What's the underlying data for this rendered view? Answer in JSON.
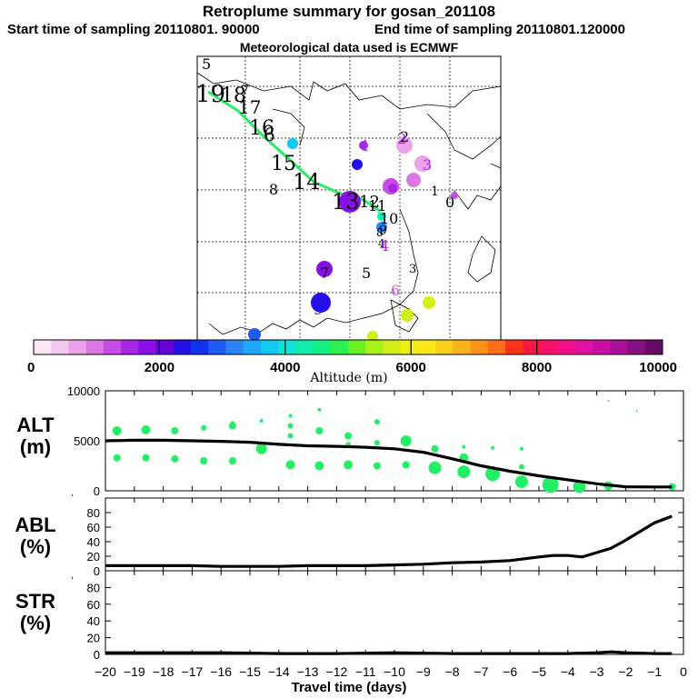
{
  "header": {
    "title": "Retroplume summary for gosan_201108",
    "start": "Start time of sampling 20110801. 90000",
    "end": "End time of sampling 20110801.120000",
    "met": "Meteorological data used is ECMWF"
  },
  "colorbar": {
    "label": "Altitude (m)",
    "ticks": [
      "0",
      "2000",
      "4000",
      "6000",
      "8000",
      "10000"
    ],
    "colors": [
      "#fbe6f7",
      "#f5c8ef",
      "#eaa2e8",
      "#dc78e6",
      "#c84be6",
      "#a826e6",
      "#8810e6",
      "#6405d6",
      "#2410e6",
      "#1232ee",
      "#1e5cf5",
      "#2a84f8",
      "#1ea6fb",
      "#10c8f2",
      "#10e2d8",
      "#10ecb0",
      "#14f080",
      "#2cf050",
      "#6af020",
      "#a8f01a",
      "#d2f018",
      "#f0f016",
      "#fae818",
      "#fcd01a",
      "#fcb41a",
      "#fc9218",
      "#fc6e18",
      "#fb3418",
      "#fa1640",
      "#fa1068",
      "#f4108c",
      "#e010a0",
      "#c810a4",
      "#a81098",
      "#861080",
      "#660a66"
    ]
  },
  "map": {
    "trajectory_labels": [
      "19",
      "18",
      "17",
      "16",
      "15",
      "14",
      "13",
      "12",
      "11",
      "10",
      "9",
      "8",
      "7",
      "6",
      "5",
      "4",
      "3",
      "2",
      "1",
      "0"
    ],
    "cluster_labels": [
      "1",
      "2",
      "3",
      "4",
      "5",
      "6",
      "7",
      "8",
      "9"
    ]
  },
  "chart_data": [
    {
      "type": "line",
      "panel": "ALT",
      "ylabel": "ALT\n(m)",
      "ylim": [
        0,
        10000
      ],
      "yticks": [
        "0",
        "5000",
        "10000"
      ],
      "x": [
        -20,
        -19,
        -18,
        -17,
        -16,
        -15,
        -14,
        -13,
        -12,
        -11,
        -10,
        -9,
        -8,
        -7,
        -6,
        -5,
        -4,
        -3,
        -2,
        -1,
        -0.4
      ],
      "values": [
        5000,
        5050,
        5050,
        5000,
        4950,
        4850,
        4650,
        4500,
        4450,
        4350,
        4200,
        3850,
        3200,
        2500,
        1950,
        1500,
        1100,
        700,
        400,
        380,
        380
      ],
      "scatter": [
        {
          "x": -19.6,
          "y": 6000,
          "r": 5
        },
        {
          "x": -19.6,
          "y": 3300,
          "r": 4
        },
        {
          "x": -18.6,
          "y": 6100,
          "r": 5
        },
        {
          "x": -18.6,
          "y": 3300,
          "r": 4
        },
        {
          "x": -17.6,
          "y": 6000,
          "r": 4
        },
        {
          "x": -17.6,
          "y": 3200,
          "r": 4
        },
        {
          "x": -16.6,
          "y": 6300,
          "r": 3
        },
        {
          "x": -16.6,
          "y": 3000,
          "r": 4
        },
        {
          "x": -15.6,
          "y": 6500,
          "r": 4
        },
        {
          "x": -15.6,
          "y": 6800,
          "r": 2
        },
        {
          "x": -15.6,
          "y": 3000,
          "r": 4
        },
        {
          "x": -14.6,
          "y": 7000,
          "r": 2
        },
        {
          "x": -14.6,
          "y": 4200,
          "r": 6
        },
        {
          "x": -13.6,
          "y": 7500,
          "r": 2
        },
        {
          "x": -13.6,
          "y": 6500,
          "r": 3
        },
        {
          "x": -13.6,
          "y": 5500,
          "r": 3
        },
        {
          "x": -13.6,
          "y": 2600,
          "r": 5
        },
        {
          "x": -12.6,
          "y": 8100,
          "r": 2
        },
        {
          "x": -12.6,
          "y": 6000,
          "r": 4
        },
        {
          "x": -12.6,
          "y": 2500,
          "r": 5
        },
        {
          "x": -11.6,
          "y": 5500,
          "r": 4
        },
        {
          "x": -11.6,
          "y": 4600,
          "r": 3
        },
        {
          "x": -11.6,
          "y": 2600,
          "r": 5
        },
        {
          "x": -10.6,
          "y": 6900,
          "r": 3
        },
        {
          "x": -10.6,
          "y": 4800,
          "r": 3
        },
        {
          "x": -10.6,
          "y": 2500,
          "r": 4
        },
        {
          "x": -9.6,
          "y": 5000,
          "r": 6
        },
        {
          "x": -9.6,
          "y": 2600,
          "r": 4
        },
        {
          "x": -8.6,
          "y": 4200,
          "r": 4
        },
        {
          "x": -8.6,
          "y": 2300,
          "r": 7
        },
        {
          "x": -7.6,
          "y": 4400,
          "r": 2
        },
        {
          "x": -7.6,
          "y": 3300,
          "r": 5
        },
        {
          "x": -7.6,
          "y": 1900,
          "r": 7
        },
        {
          "x": -6.6,
          "y": 4300,
          "r": 2
        },
        {
          "x": -6.6,
          "y": 1700,
          "r": 8
        },
        {
          "x": -5.6,
          "y": 4200,
          "r": 2
        },
        {
          "x": -5.6,
          "y": 2400,
          "r": 3
        },
        {
          "x": -5.6,
          "y": 900,
          "r": 7
        },
        {
          "x": -4.6,
          "y": 600,
          "r": 9
        },
        {
          "x": -3.6,
          "y": 400,
          "r": 7
        },
        {
          "x": -2.6,
          "y": 9000,
          "r": 1
        },
        {
          "x": -2.6,
          "y": 500,
          "r": 5
        },
        {
          "x": -1.6,
          "y": 8000,
          "r": 1
        },
        {
          "x": -0.4,
          "y": 400,
          "r": 4
        }
      ]
    },
    {
      "type": "line",
      "panel": "ABL",
      "ylabel": "ABL\n(%)",
      "ylim": [
        0,
        100
      ],
      "yticks": [
        "0",
        "20",
        "40",
        "60",
        "80"
      ],
      "x": [
        -20,
        -19,
        -18,
        -17,
        -16,
        -15,
        -14,
        -13,
        -12,
        -11,
        -10,
        -9,
        -8,
        -7,
        -6,
        -5,
        -4.5,
        -4,
        -3.5,
        -3,
        -2.5,
        -2,
        -1.5,
        -1,
        -0.4
      ],
      "values": [
        7,
        7,
        7,
        7,
        6,
        6,
        6,
        7,
        7,
        7,
        8,
        9,
        11,
        12,
        14,
        19,
        21,
        21,
        19,
        25,
        31,
        42,
        54,
        66,
        75
      ]
    },
    {
      "type": "line",
      "panel": "STR",
      "ylabel": "STR\n(%)",
      "ylim": [
        0,
        100
      ],
      "yticks": [
        "0",
        "20",
        "40",
        "60",
        "80"
      ],
      "x": [
        -20,
        -18,
        -16,
        -14,
        -12,
        -10,
        -8,
        -6,
        -4,
        -3,
        -2.5,
        -2,
        -1,
        -0.4
      ],
      "values": [
        2,
        2,
        2,
        1,
        1,
        2,
        1,
        1,
        1,
        2,
        3,
        2,
        1,
        1
      ]
    }
  ],
  "xaxis": {
    "label": "Travel time (days)",
    "ticks": [
      "-20",
      "-19",
      "-18",
      "-17",
      "-16",
      "-15",
      "-14",
      "-13",
      "-12",
      "-11",
      "-10",
      "-9",
      "-8",
      "-7",
      "-6",
      "-5",
      "-4",
      "-3",
      "-2",
      "-1",
      "0"
    ]
  }
}
